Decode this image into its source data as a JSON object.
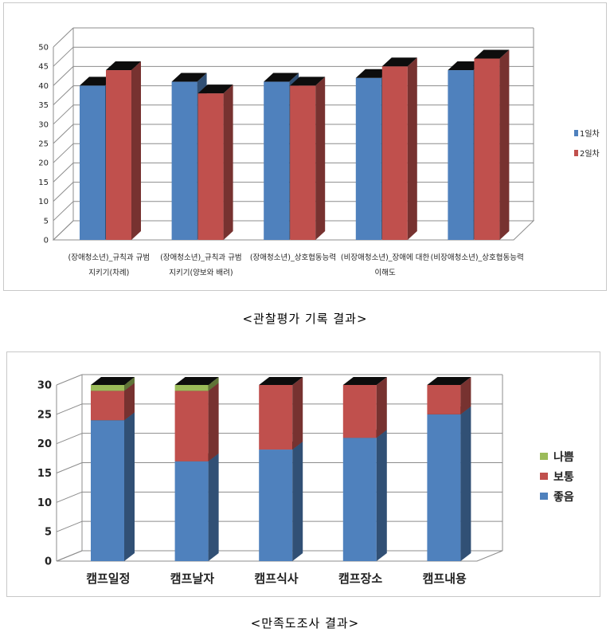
{
  "chart_data": [
    {
      "type": "bar",
      "title": "",
      "xlabel": "",
      "ylabel": "",
      "ylim": [
        0,
        50
      ],
      "y_ticks": [
        0,
        5,
        10,
        15,
        20,
        25,
        30,
        35,
        40,
        45,
        50
      ],
      "grid": true,
      "legend_position": "right",
      "categories": [
        [
          "(장애청소년)_규칙과 규범",
          "지키기(차례)"
        ],
        [
          "(장애청소년)_규칙과 규범",
          "지키기(양보와 배려)"
        ],
        [
          "(장애청소년)_상호협동능력"
        ],
        [
          "(비장애청소년)_장애에 대한",
          "이해도"
        ],
        [
          "(비장애청소년)_상호협동능력"
        ]
      ],
      "series": [
        {
          "name": "1일차",
          "color": "#4F81BD",
          "values": [
            40,
            41,
            41,
            42,
            44
          ]
        },
        {
          "name": "2일차",
          "color": "#C0504D",
          "values": [
            44,
            38,
            40,
            45,
            47
          ]
        }
      ]
    },
    {
      "type": "bar",
      "stacked": true,
      "title": "",
      "xlabel": "",
      "ylabel": "",
      "ylim": [
        0,
        30
      ],
      "y_ticks": [
        0,
        5,
        10,
        15,
        20,
        25,
        30
      ],
      "grid": true,
      "legend_position": "right",
      "categories": [
        "캠프일정",
        "캠프날자",
        "캠프식사",
        "캠프장소",
        "캠프내용"
      ],
      "series": [
        {
          "name": "좋음",
          "color": "#4F81BD",
          "values": [
            24,
            17,
            19,
            21,
            25
          ]
        },
        {
          "name": "보통",
          "color": "#C0504D",
          "values": [
            5,
            12,
            11,
            9,
            5
          ]
        },
        {
          "name": "나쁨",
          "color": "#9BBB59",
          "values": [
            1,
            1,
            0,
            0,
            0
          ]
        }
      ],
      "legend_order": [
        "나쁨",
        "보통",
        "좋음"
      ]
    }
  ],
  "captions": {
    "chart1": "<관찰평가 기록 결과>",
    "chart2": "<만족도조사 결과>"
  }
}
